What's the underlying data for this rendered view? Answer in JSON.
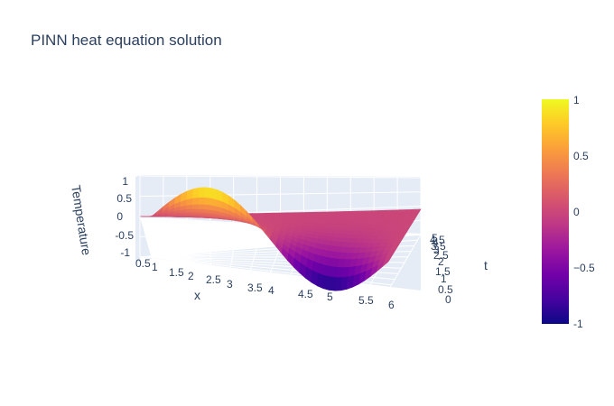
{
  "chart_data": {
    "type": "surface",
    "title": "PINN heat equation solution",
    "x_label": "x",
    "t_label": "t",
    "z_label": "Temperature",
    "x_range": [
      0,
      6.2832
    ],
    "t_range": [
      0,
      5
    ],
    "z_range": [
      -1,
      1
    ],
    "x_ticks": [
      "0.5",
      "1",
      "1.5",
      "2",
      "2.5",
      "3",
      "3.5",
      "4",
      "4.5",
      "5",
      "5.5",
      "6"
    ],
    "t_ticks": [
      "0",
      "0.5",
      "1",
      "1.5",
      "2",
      "2.5",
      "3",
      "3.5",
      "4",
      "4.5",
      "5"
    ],
    "z_ticks": [
      "-1",
      "-0.5",
      "0",
      "0.5",
      "1"
    ],
    "surface_formula": "sin(x) * exp(-t)",
    "colorbar": {
      "ticks": [
        "-1",
        "−0.5",
        "0",
        "0.5",
        "1"
      ],
      "colorscale": [
        "#0d0887",
        "#46039f",
        "#7201a8",
        "#9c179e",
        "#bd3786",
        "#d8576b",
        "#ed7953",
        "#fb9f3a",
        "#fdca26",
        "#f0f921"
      ]
    },
    "scene_bg": "#e5ecf6"
  }
}
